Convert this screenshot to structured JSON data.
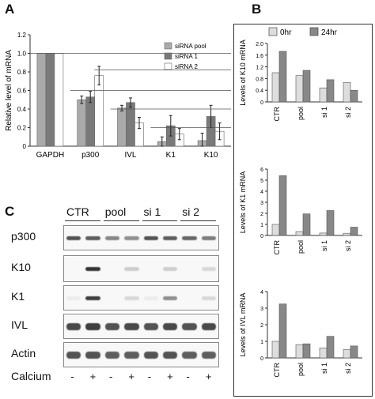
{
  "panels": {
    "A": "A",
    "B": "B",
    "C": "C"
  },
  "chart_data": [
    {
      "type": "bar",
      "panel": "A",
      "ylabel": "Relative level of mRNA",
      "ylim": [
        0,
        1.2
      ],
      "yticks": [
        "0",
        "0.2",
        "0.4",
        "0.6",
        "0.8",
        "1.0",
        "1.2"
      ],
      "categories": [
        "GAPDH",
        "p300",
        "IVL",
        "K1",
        "K10"
      ],
      "series": [
        {
          "name": "siRNA pool",
          "color": "#aaaaaa",
          "values": [
            1.0,
            0.5,
            0.41,
            0.05,
            0.06
          ]
        },
        {
          "name": "siRNA 1",
          "color": "#7a7a7a",
          "values": [
            1.0,
            0.53,
            0.47,
            0.22,
            0.32
          ]
        },
        {
          "name": "siRNA 2",
          "color": "#ffffff",
          "values": [
            1.0,
            0.76,
            0.25,
            0.13,
            0.16
          ]
        }
      ],
      "errors": [
        [
          0,
          0.04,
          0.03,
          0.05,
          0.08
        ],
        [
          0,
          0.06,
          0.05,
          0.11,
          0.12
        ],
        [
          0,
          0.1,
          0.06,
          0.06,
          0.09
        ]
      ],
      "legend_position": "top-right"
    },
    {
      "type": "bar",
      "panel": "B",
      "ylabel": "Levels of K10 mRNA",
      "ylim": [
        0,
        2.0
      ],
      "yticks": [
        "0",
        "0.4",
        "0.8",
        "1.2",
        "1.6",
        "2.0"
      ],
      "categories": [
        "CTR",
        "pool",
        "si 1",
        "si 2"
      ],
      "series": [
        {
          "name": "0hr",
          "color": "#dddddd",
          "values": [
            1.0,
            0.9,
            0.48,
            0.67
          ]
        },
        {
          "name": "24hr",
          "color": "#888888",
          "values": [
            1.73,
            1.08,
            0.76,
            0.4
          ]
        }
      ],
      "legend_position": "top"
    },
    {
      "type": "bar",
      "panel": "B",
      "ylabel": "Levels of K1 mRNA",
      "ylim": [
        0,
        6
      ],
      "yticks": [
        "0",
        "1",
        "2",
        "3",
        "4",
        "5",
        "6"
      ],
      "categories": [
        "CTR",
        "pool",
        "si 1",
        "si 2"
      ],
      "series": [
        {
          "name": "0hr",
          "color": "#dddddd",
          "values": [
            1.0,
            0.35,
            0.22,
            0.2
          ]
        },
        {
          "name": "24hr",
          "color": "#888888",
          "values": [
            5.4,
            1.95,
            2.25,
            0.75
          ]
        }
      ]
    },
    {
      "type": "bar",
      "panel": "B",
      "ylabel": "Levels of IVL mRNA",
      "ylim": [
        0,
        4
      ],
      "yticks": [
        "0",
        "1",
        "2",
        "3",
        "4"
      ],
      "categories": [
        "CTR",
        "pool",
        "si 1",
        "si 2"
      ],
      "series": [
        {
          "name": "0hr",
          "color": "#dddddd",
          "values": [
            1.0,
            0.8,
            0.6,
            0.5
          ]
        },
        {
          "name": "24hr",
          "color": "#888888",
          "values": [
            3.25,
            0.85,
            1.3,
            0.72
          ]
        }
      ]
    }
  ],
  "blot": {
    "lanes": [
      "CTR",
      "pool",
      "si 1",
      "si 2"
    ],
    "rows": [
      "p300",
      "K10",
      "K1",
      "IVL",
      "Actin"
    ],
    "calcium_label": "Calcium",
    "calcium_signs": [
      "-",
      "+",
      "-",
      "+",
      "-",
      "+",
      "-",
      "+"
    ],
    "intensities": {
      "p300": [
        0.8,
        0.75,
        0.55,
        0.5,
        0.8,
        0.75,
        0.7,
        0.6
      ],
      "K10": [
        0.0,
        0.95,
        0.0,
        0.2,
        0.0,
        0.2,
        0.0,
        0.15
      ],
      "K1": [
        0.05,
        0.9,
        0.0,
        0.15,
        0.05,
        0.5,
        0.0,
        0.15
      ],
      "IVL": [
        0.85,
        0.9,
        0.8,
        0.85,
        0.8,
        0.85,
        0.8,
        0.85
      ],
      "Actin": [
        0.8,
        0.8,
        0.75,
        0.75,
        0.8,
        0.8,
        0.75,
        0.75
      ]
    }
  }
}
